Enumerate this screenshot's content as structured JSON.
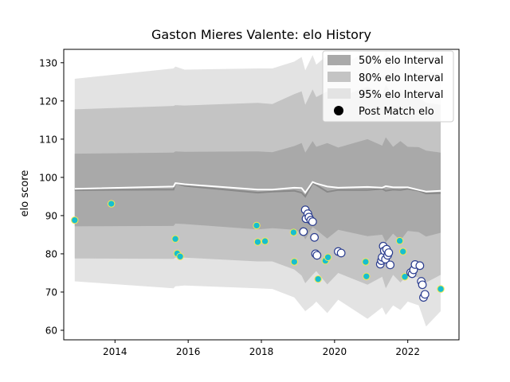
{
  "chart_data": {
    "type": "scatter",
    "title": "Gaston Mieres Valente: elo History",
    "xlabel": "",
    "ylabel": "elo score",
    "xlim": [
      2012.6,
      2023.4
    ],
    "ylim": [
      57.5,
      133.5
    ],
    "x_ticks": [
      2014,
      2016,
      2018,
      2020,
      2022
    ],
    "y_ticks": [
      60,
      70,
      80,
      90,
      100,
      110,
      120,
      130
    ],
    "grid": false,
    "legend_position": "top-right",
    "legend": {
      "band50_label": "50% elo Interval",
      "band80_label": "80% elo Interval",
      "band95_label": "95% elo Interval",
      "points_label": "Post Match elo"
    },
    "colors": {
      "band50": "#a9a9a9",
      "band80": "#c4c4c4",
      "band95": "#e3e3e3",
      "median_line": "#888888",
      "mean_line": "#ffffff",
      "point_fill_a": "#17becf",
      "point_edge_a": "#f5e94d",
      "point_fill_b": "#ffffff",
      "point_edge_b": "#2b3d8f"
    },
    "band_x": [
      2012.9,
      2015.6,
      2015.65,
      2015.9,
      2017.9,
      2018.3,
      2018.9,
      2019.1,
      2019.2,
      2019.4,
      2019.5,
      2019.8,
      2020.1,
      2020.9,
      2021.3,
      2021.4,
      2021.6,
      2021.8,
      2022.0,
      2022.3,
      2022.5,
      2022.9
    ],
    "band95_upper": [
      125.8,
      128.5,
      129.0,
      128.2,
      128.5,
      128.5,
      130.3,
      131.5,
      128.0,
      132.0,
      129.5,
      132.0,
      129.0,
      133.0,
      130.5,
      133.0,
      129.0,
      131.0,
      129.5,
      129.0,
      127.5,
      127.3
    ],
    "band80_upper": [
      117.8,
      118.7,
      118.9,
      118.8,
      119.5,
      119.2,
      121.8,
      122.5,
      119.0,
      123.0,
      121.0,
      122.5,
      120.8,
      123.8,
      121.7,
      124.3,
      121.0,
      123.0,
      121.3,
      121.0,
      119.5,
      119.0
    ],
    "band50_upper": [
      106.2,
      106.5,
      106.8,
      106.7,
      106.8,
      106.6,
      108.2,
      109.0,
      106.5,
      109.5,
      108.0,
      109.0,
      107.8,
      110.0,
      108.3,
      110.5,
      108.0,
      109.5,
      108.0,
      107.9,
      107.0,
      106.5
    ],
    "median": [
      96.7,
      96.8,
      98.5,
      97.8,
      96.0,
      96.3,
      96.5,
      96.0,
      95.0,
      98.5,
      98.0,
      96.2,
      96.7,
      96.7,
      97.0,
      96.5,
      96.8,
      96.7,
      97.0,
      96.5,
      95.8,
      95.9
    ],
    "mean": [
      97.0,
      97.6,
      98.5,
      98.2,
      96.8,
      96.8,
      97.3,
      97.2,
      96.0,
      98.8,
      98.4,
      97.6,
      97.3,
      97.5,
      97.3,
      97.7,
      97.4,
      97.4,
      97.4,
      96.7,
      96.3,
      96.5
    ],
    "band50_lower": [
      87.2,
      87.3,
      87.9,
      87.8,
      86.4,
      86.7,
      86.3,
      85.5,
      83.8,
      87.0,
      86.3,
      84.0,
      86.3,
      84.6,
      85.0,
      83.0,
      85.3,
      83.5,
      86.0,
      85.7,
      84.5,
      85.5
    ],
    "band80_lower": [
      78.8,
      78.7,
      79.0,
      79.0,
      78.0,
      78.0,
      75.9,
      74.3,
      72.3,
      74.5,
      75.5,
      72.0,
      75.0,
      71.9,
      74.0,
      71.0,
      74.5,
      72.5,
      74.5,
      73.8,
      72.5,
      74.5
    ],
    "band95_lower": [
      72.8,
      71.0,
      71.5,
      71.7,
      71.0,
      70.8,
      68.6,
      66.2,
      65.0,
      66.5,
      67.5,
      64.5,
      68.0,
      63.0,
      66.0,
      64.0,
      66.5,
      65.3,
      67.5,
      66.5,
      61.0,
      65.0
    ],
    "points_a": [
      {
        "x": 2012.9,
        "y": 88.8
      },
      {
        "x": 2013.9,
        "y": 93.1
      },
      {
        "x": 2015.65,
        "y": 83.9
      },
      {
        "x": 2015.7,
        "y": 80.1
      },
      {
        "x": 2015.78,
        "y": 79.3
      },
      {
        "x": 2017.87,
        "y": 87.4
      },
      {
        "x": 2017.9,
        "y": 83.1
      },
      {
        "x": 2018.1,
        "y": 83.3
      },
      {
        "x": 2018.88,
        "y": 85.6
      },
      {
        "x": 2018.9,
        "y": 77.9
      },
      {
        "x": 2019.55,
        "y": 73.4
      },
      {
        "x": 2019.75,
        "y": 78.2
      },
      {
        "x": 2019.82,
        "y": 79.1
      },
      {
        "x": 2020.85,
        "y": 77.9
      },
      {
        "x": 2020.87,
        "y": 74.1
      },
      {
        "x": 2021.78,
        "y": 83.4
      },
      {
        "x": 2021.87,
        "y": 80.6
      },
      {
        "x": 2021.92,
        "y": 74.0
      },
      {
        "x": 2022.9,
        "y": 70.8
      }
    ],
    "points_b": [
      {
        "x": 2019.15,
        "y": 85.8
      },
      {
        "x": 2019.2,
        "y": 91.5
      },
      {
        "x": 2019.22,
        "y": 89.2
      },
      {
        "x": 2019.27,
        "y": 90.5
      },
      {
        "x": 2019.3,
        "y": 89.6
      },
      {
        "x": 2019.35,
        "y": 88.8
      },
      {
        "x": 2019.4,
        "y": 88.4
      },
      {
        "x": 2019.45,
        "y": 84.3
      },
      {
        "x": 2019.48,
        "y": 80.0
      },
      {
        "x": 2019.52,
        "y": 79.6
      },
      {
        "x": 2020.1,
        "y": 80.6
      },
      {
        "x": 2020.18,
        "y": 80.2
      },
      {
        "x": 2021.25,
        "y": 77.3
      },
      {
        "x": 2021.28,
        "y": 78.2
      },
      {
        "x": 2021.3,
        "y": 79.1
      },
      {
        "x": 2021.33,
        "y": 82.0
      },
      {
        "x": 2021.36,
        "y": 80.8
      },
      {
        "x": 2021.39,
        "y": 78.6
      },
      {
        "x": 2021.42,
        "y": 81.2
      },
      {
        "x": 2021.45,
        "y": 79.6
      },
      {
        "x": 2021.48,
        "y": 80.3
      },
      {
        "x": 2021.52,
        "y": 77.1
      },
      {
        "x": 2022.08,
        "y": 75.1
      },
      {
        "x": 2022.12,
        "y": 74.8
      },
      {
        "x": 2022.16,
        "y": 75.8
      },
      {
        "x": 2022.2,
        "y": 77.2
      },
      {
        "x": 2022.33,
        "y": 76.9
      },
      {
        "x": 2022.37,
        "y": 72.8
      },
      {
        "x": 2022.4,
        "y": 71.9
      },
      {
        "x": 2022.43,
        "y": 68.6
      },
      {
        "x": 2022.47,
        "y": 69.4
      }
    ]
  }
}
